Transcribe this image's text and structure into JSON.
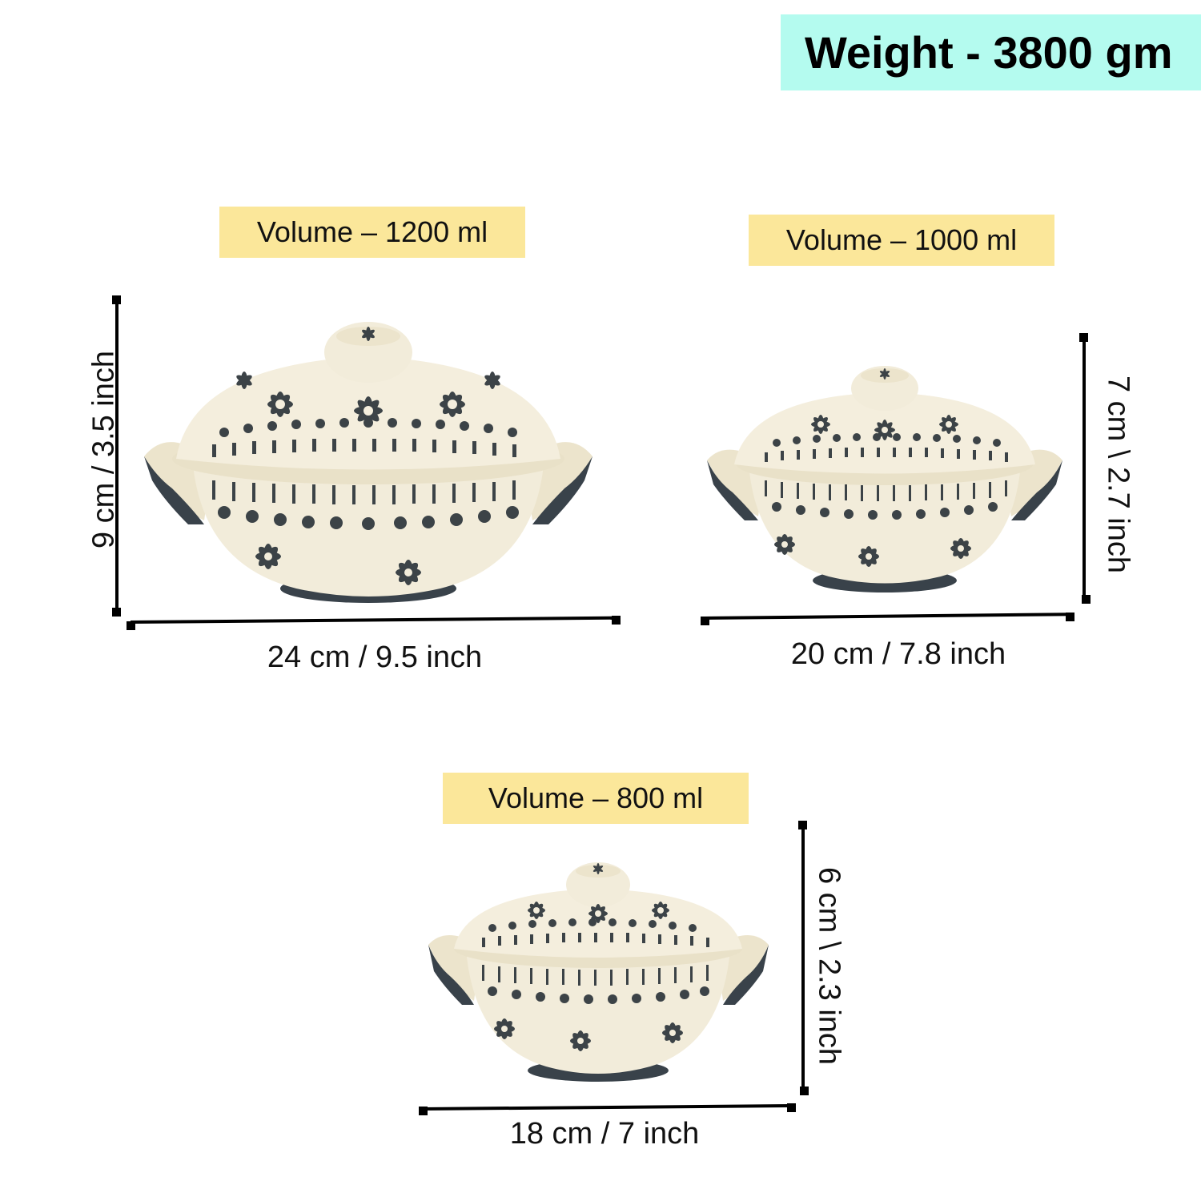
{
  "weight_label": "Weight - 3800 gm",
  "items": [
    {
      "volume": "Volume – 1200 ml",
      "width": "24 cm / 9.5 inch",
      "height": "9 cm / 3.5 inch"
    },
    {
      "volume": "Volume – 1000 ml",
      "width": "20 cm / 7.8 inch",
      "height": "7 cm \\ 2.7 inch"
    },
    {
      "volume": "Volume – 800 ml",
      "width": "18 cm / 7 inch",
      "height": "6 cm \\ 2.3 inch"
    }
  ],
  "colors": {
    "weight_badge": "#b4fbef",
    "volume_badge": "#fbe79a",
    "pot_body": "#f1ebd8",
    "pot_pattern": "#3c4347"
  }
}
